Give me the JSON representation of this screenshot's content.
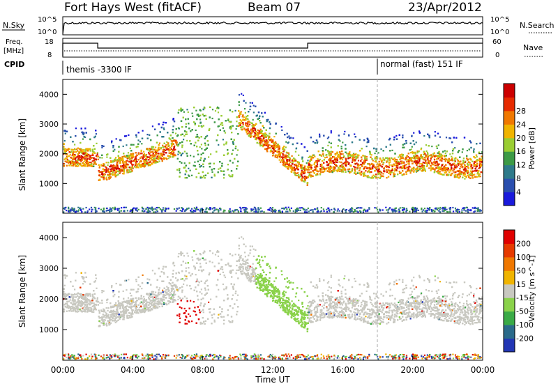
{
  "header": {
    "station": "Fort Hays West (fitACF)",
    "beam": "Beam 07",
    "date": "23/Apr/2012"
  },
  "top_panel": {
    "nsky_label": "N.Sky",
    "left_ticks": [
      "10^5",
      "10^0"
    ],
    "right_ticks": [
      "10^5",
      "10^0"
    ],
    "nsearch_label": "N.Search"
  },
  "freq_panel": {
    "label_line1": "Freq.",
    "label_line2": "[MHz]",
    "left_ticks": [
      "18",
      "8"
    ],
    "right_ticks": [
      "60",
      "0"
    ],
    "nave_label": "Nave",
    "freq_steps": [
      {
        "from_hour": 0.0,
        "to_hour": 2.0,
        "level": "high"
      },
      {
        "from_hour": 2.0,
        "to_hour": 14.0,
        "level": "low"
      },
      {
        "from_hour": 14.0,
        "to_hour": 24.0,
        "level": "high"
      }
    ]
  },
  "cpid": {
    "label": "CPID",
    "segments": [
      {
        "start_hour": 0.0,
        "text": "themis -3300 IF"
      },
      {
        "start_hour": 18.0,
        "text": "normal (fast) 151 IF"
      }
    ]
  },
  "chart_data": [
    {
      "type": "heatmap",
      "name": "power",
      "xlabel": "",
      "ylabel": "Slant Range [km]",
      "x_range_hours": [
        0,
        24
      ],
      "ylim": [
        0,
        4500
      ],
      "yticks": [
        1000,
        2000,
        3000,
        4000
      ],
      "colorbar": {
        "title": "Power [dB]",
        "ticks": [
          "4",
          "8",
          "12",
          "16",
          "20",
          "24",
          "28"
        ],
        "colors": [
          "#1a1adc",
          "#2a4fae",
          "#2e7a8a",
          "#3d9a46",
          "#9acd32",
          "#f0b400",
          "#f07800",
          "#e62a00",
          "#cc0000"
        ]
      },
      "regions": [
        {
          "t0": 0.0,
          "t1": 2.0,
          "r0": 1500,
          "r1": 2400,
          "palette": "power"
        },
        {
          "t0": 2.0,
          "t1": 6.0,
          "r0": 1200,
          "r1": 2600,
          "palette": "power"
        },
        {
          "t0": 10.2,
          "t1": 13.9,
          "r0": 1100,
          "r1": 3100,
          "palette": "power"
        },
        {
          "t0": 14.0,
          "t1": 24.0,
          "r0": 1250,
          "r1": 2500,
          "palette": "power"
        }
      ]
    },
    {
      "type": "heatmap",
      "name": "velocity",
      "xlabel": "Time UT",
      "ylabel": "Slant Range [km]",
      "xticks": [
        "00:00",
        "04:00",
        "08:00",
        "12:00",
        "16:00",
        "20:00",
        "00:00"
      ],
      "x_range_hours": [
        0,
        24
      ],
      "ylim": [
        0,
        4500
      ],
      "yticks": [
        1000,
        2000,
        3000,
        4000
      ],
      "colorbar": {
        "title": "Velocity [m s^-1]",
        "ticks": [
          "200",
          "100",
          "50",
          "15",
          "-15",
          "-50",
          "-100",
          "-200"
        ],
        "colors": [
          "#2236b4",
          "#2a6a8a",
          "#3aaa46",
          "#8ad24a",
          "#c8c8c0",
          "#f0b400",
          "#f07800",
          "#e63a00",
          "#e00000"
        ]
      }
    }
  ]
}
